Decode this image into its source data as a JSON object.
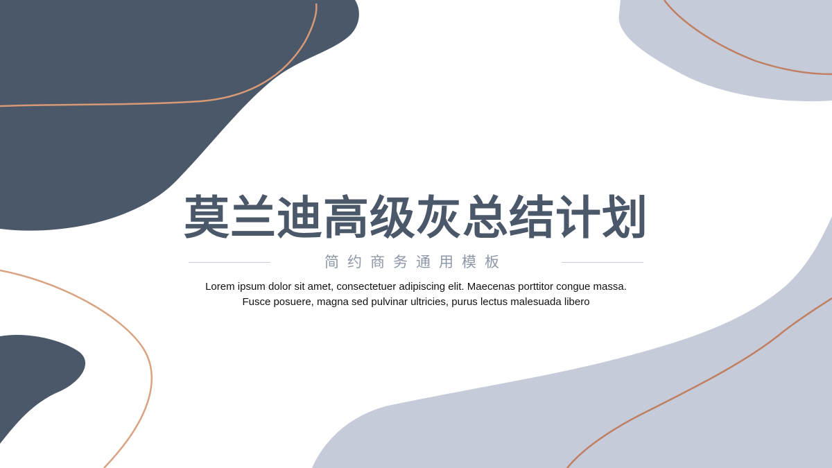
{
  "slide": {
    "title": "莫兰迪高级灰总结计划",
    "subtitle": "简约商务通用模板",
    "description_lines": [
      "Lorem ipsum dolor sit amet, consectetuer adipiscing elit. Maecenas porttitor congue massa.",
      "Fusce posuere, magna sed pulvinar ultricies, purus lectus malesuada libero"
    ]
  },
  "colors": {
    "dark_slate": "#4b5869",
    "light_gray_blue": "#c5cbd8",
    "copper_line": "#c98a67",
    "title_text": "#4b5869",
    "subtitle_text": "#8e97a8",
    "background": "#ffffff"
  }
}
